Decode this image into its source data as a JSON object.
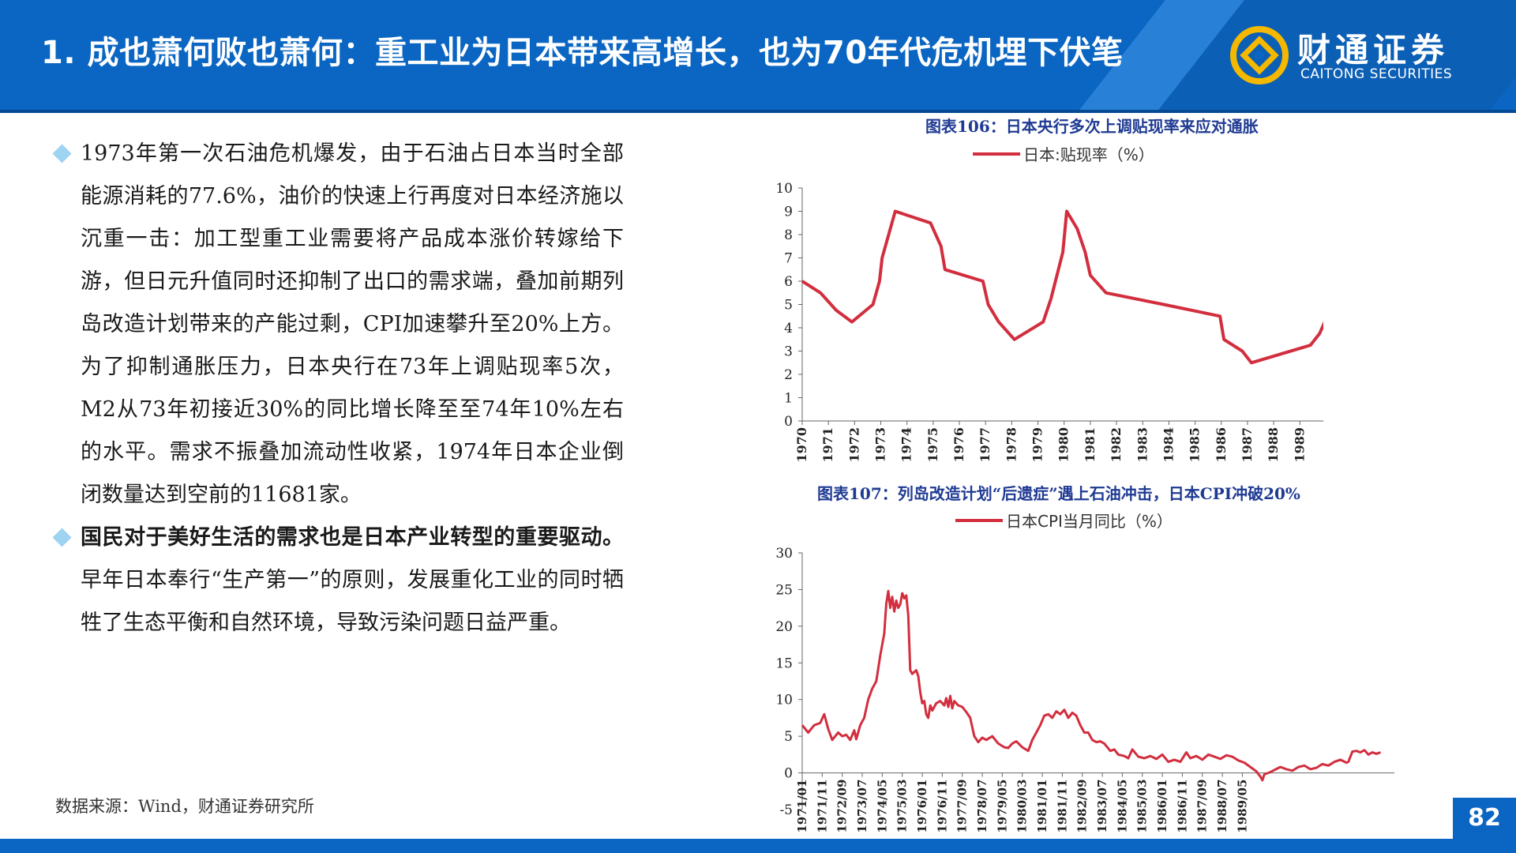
{
  "header": {
    "title": "1. 成也萧何败也萧何：重工业为日本带来高增长，也为70年代危机埋下伏笔",
    "logo_cn": "财通证券",
    "logo_en": "CAITONG SECURITIES"
  },
  "body": {
    "para1": "1973年第一次石油危机爆发，由于石油占日本当时全部能源消耗的77.6%，油价的快速上行再度对日本经济施以沉重一击：加工型重工业需要将产品成本涨价转嫁给下游，但日元升值同时还抑制了出口的需求端，叠加前期列岛改造计划带来的产能过剩，CPI加速攀升至20%上方。为了抑制通胀压力，日本央行在73年上调贴现率5次，M2从73年初接近30%的同比增长降至至74年10%左右的水平。需求不振叠加流动性收紧，1974年日本企业倒闭数量达到空前的11681家。",
    "para2_bold": "国民对于美好生活的需求也是日本产业转型的重要驱动。",
    "para2_rest": "早年日本奉行“生产第一”的原则，发展重化工业的同时牺牲了生态平衡和自然环境，导致污染问题日益严重。"
  },
  "source": "数据来源：Wind，财通证券研究所",
  "page_number": "82",
  "colors": {
    "primary_blue": "#0a66c2",
    "line_red": "#d22e3e",
    "chart_title_blue": "#1f3a93"
  },
  "chart_data": [
    {
      "type": "line",
      "title": "图表106：日本央行多次上调贴现率来应对通胀",
      "series": [
        {
          "name": "日本:贴现率（%）",
          "points": [
            [
              1970.0,
              6.0
            ],
            [
              1970.7,
              5.5
            ],
            [
              1971.3,
              4.75
            ],
            [
              1971.9,
              4.25
            ],
            [
              1972.7,
              5.0
            ],
            [
              1972.95,
              6.0
            ],
            [
              1973.05,
              7.0
            ],
            [
              1973.3,
              8.0
            ],
            [
              1973.55,
              9.0
            ],
            [
              1974.9,
              8.5
            ],
            [
              1975.3,
              7.5
            ],
            [
              1975.45,
              6.5
            ],
            [
              1976.9,
              6.0
            ],
            [
              1977.1,
              5.0
            ],
            [
              1977.5,
              4.25
            ],
            [
              1978.1,
              3.5
            ],
            [
              1979.2,
              4.25
            ],
            [
              1979.5,
              5.25
            ],
            [
              1979.95,
              7.25
            ],
            [
              1980.1,
              9.0
            ],
            [
              1980.5,
              8.25
            ],
            [
              1980.8,
              7.25
            ],
            [
              1981.0,
              6.25
            ],
            [
              1981.6,
              5.5
            ],
            [
              1983.8,
              5.0
            ],
            [
              1985.95,
              4.5
            ],
            [
              1986.1,
              3.5
            ],
            [
              1986.8,
              3.0
            ],
            [
              1987.15,
              2.5
            ],
            [
              1989.4,
              3.25
            ],
            [
              1989.75,
              3.75
            ],
            [
              1989.95,
              4.25
            ]
          ]
        }
      ],
      "x_ticks": [
        "1970",
        "1971",
        "1972",
        "1973",
        "1974",
        "1975",
        "1976",
        "1977",
        "1978",
        "1979",
        "1980",
        "1981",
        "1982",
        "1983",
        "1984",
        "1985",
        "1986",
        "1987",
        "1988",
        "1989"
      ],
      "y_ticks": [
        "0",
        "1",
        "2",
        "3",
        "4",
        "5",
        "6",
        "7",
        "8",
        "9",
        "10"
      ],
      "ylim": [
        0,
        10
      ],
      "xlim": [
        1970,
        1990.8
      ]
    },
    {
      "type": "line",
      "title": "图表107：列岛改造计划“后遗症”遇上石油冲击，日本CPI冲破20%",
      "series": [
        {
          "name": "日本CPI当月同比（%）",
          "points": [
            [
              0,
              6.5
            ],
            [
              3,
              5.5
            ],
            [
              6,
              6.5
            ],
            [
              9,
              6.8
            ],
            [
              11,
              8.0
            ],
            [
              13,
              6.0
            ],
            [
              15,
              4.5
            ],
            [
              18,
              5.5
            ],
            [
              20,
              5.0
            ],
            [
              22,
              5.2
            ],
            [
              24,
              4.5
            ],
            [
              26,
              5.8
            ],
            [
              27,
              4.6
            ],
            [
              29,
              6.5
            ],
            [
              31,
              7.5
            ],
            [
              33,
              10.0
            ],
            [
              35,
              11.5
            ],
            [
              37,
              12.5
            ],
            [
              39,
              16.0
            ],
            [
              41,
              19.0
            ],
            [
              42,
              23.0
            ],
            [
              43,
              24.8
            ],
            [
              44,
              22.5
            ],
            [
              45,
              24.0
            ],
            [
              46,
              22.0
            ],
            [
              47,
              23.5
            ],
            [
              48,
              22.5
            ],
            [
              49,
              23.0
            ],
            [
              50,
              24.5
            ],
            [
              51,
              23.8
            ],
            [
              52,
              24.2
            ],
            [
              53,
              21.5
            ],
            [
              54,
              14.0
            ],
            [
              55,
              13.5
            ],
            [
              57,
              14.0
            ],
            [
              58,
              13.2
            ],
            [
              59,
              11.0
            ],
            [
              60,
              9.5
            ],
            [
              61,
              9.8
            ],
            [
              62,
              8.0
            ],
            [
              63,
              7.5
            ],
            [
              64,
              9.2
            ],
            [
              65,
              8.5
            ],
            [
              67,
              9.5
            ],
            [
              69,
              9.8
            ],
            [
              71,
              9.2
            ],
            [
              72,
              10.2
            ],
            [
              73,
              9.0
            ],
            [
              74,
              10.5
            ],
            [
              75,
              8.8
            ],
            [
              76,
              9.8
            ],
            [
              78,
              9.2
            ],
            [
              80,
              9.0
            ],
            [
              82,
              8.3
            ],
            [
              84,
              7.5
            ],
            [
              86,
              5.0
            ],
            [
              88,
              4.2
            ],
            [
              90,
              4.8
            ],
            [
              92,
              4.5
            ],
            [
              95,
              5.0
            ],
            [
              98,
              4.0
            ],
            [
              101,
              3.5
            ],
            [
              103,
              3.4
            ],
            [
              105,
              4.0
            ],
            [
              107,
              4.3
            ],
            [
              110,
              3.5
            ],
            [
              113,
              3.0
            ],
            [
              115,
              4.5
            ],
            [
              117,
              5.5
            ],
            [
              119,
              6.5
            ],
            [
              121,
              7.8
            ],
            [
              123,
              8.0
            ],
            [
              125,
              7.5
            ],
            [
              127,
              8.4
            ],
            [
              129,
              8.0
            ],
            [
              131,
              8.6
            ],
            [
              133,
              7.5
            ],
            [
              135,
              8.2
            ],
            [
              137,
              7.8
            ],
            [
              139,
              6.5
            ],
            [
              141,
              5.5
            ],
            [
              143,
              5.5
            ],
            [
              145,
              4.5
            ],
            [
              147,
              4.2
            ],
            [
              149,
              4.3
            ],
            [
              151,
              4.0
            ],
            [
              154,
              3.0
            ],
            [
              156,
              3.2
            ],
            [
              158,
              2.5
            ],
            [
              161,
              2.3
            ],
            [
              163,
              2.0
            ],
            [
              165,
              3.2
            ],
            [
              168,
              2.2
            ],
            [
              171,
              2.0
            ],
            [
              174,
              2.3
            ],
            [
              177,
              1.9
            ],
            [
              180,
              2.5
            ],
            [
              183,
              1.5
            ],
            [
              186,
              1.8
            ],
            [
              189,
              1.5
            ],
            [
              192,
              2.8
            ],
            [
              194,
              2.0
            ],
            [
              197,
              2.3
            ],
            [
              200,
              1.8
            ],
            [
              203,
              2.5
            ],
            [
              206,
              2.2
            ],
            [
              209,
              1.9
            ],
            [
              212,
              2.4
            ],
            [
              215,
              2.2
            ],
            [
              218,
              1.7
            ],
            [
              221,
              1.4
            ],
            [
              224,
              0.8
            ],
            [
              227,
              0.2
            ],
            [
              229,
              -0.5
            ],
            [
              230,
              -1.0
            ],
            [
              231,
              -0.2
            ],
            [
              234,
              0.1
            ],
            [
              236,
              0.4
            ],
            [
              239,
              0.8
            ],
            [
              242,
              0.5
            ],
            [
              245,
              0.3
            ],
            [
              248,
              0.8
            ],
            [
              251,
              1.0
            ],
            [
              254,
              0.5
            ],
            [
              257,
              0.7
            ],
            [
              260,
              1.2
            ],
            [
              263,
              1.0
            ],
            [
              266,
              1.5
            ],
            [
              269,
              1.8
            ],
            [
              272,
              1.4
            ],
            [
              273,
              1.5
            ],
            [
              275,
              2.9
            ],
            [
              277,
              3.0
            ],
            [
              279,
              2.8
            ],
            [
              281,
              3.1
            ],
            [
              283,
              2.5
            ],
            [
              285,
              2.8
            ],
            [
              287,
              2.6
            ],
            [
              289,
              2.8
            ]
          ]
        }
      ],
      "x_ticks": [
        "1971/01",
        "1971/11",
        "1972/09",
        "1973/07",
        "1974/05",
        "1975/03",
        "1976/01",
        "1976/11",
        "1977/09",
        "1978/07",
        "1979/05",
        "1980/03",
        "1981/01",
        "1981/11",
        "1982/09",
        "1983/07",
        "1984/05",
        "1985/03",
        "1986/01",
        "1986/11",
        "1987/09",
        "1988/07",
        "1989/05"
      ],
      "y_ticks": [
        "-5",
        "0",
        "5",
        "10",
        "15",
        "20",
        "25",
        "30"
      ],
      "ylim": [
        -5,
        30
      ]
    }
  ]
}
